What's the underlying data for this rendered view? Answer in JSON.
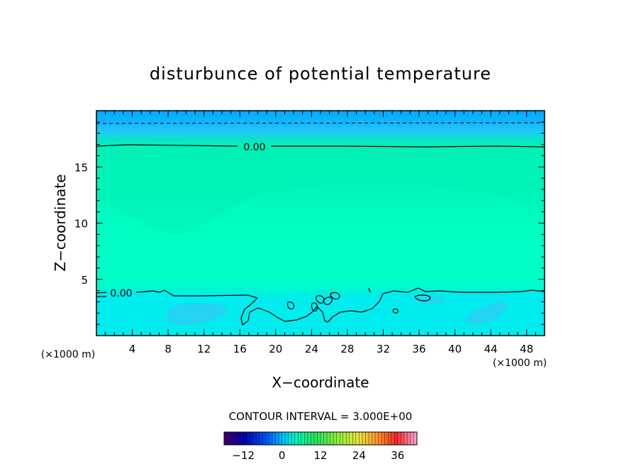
{
  "chart_data": {
    "type": "heatmap",
    "title": "disturbunce of potential temperature",
    "xlabel": "X−coordinate",
    "ylabel": "Z−coordinate",
    "x_unit_left": "(×1000 m)",
    "x_unit_right": "(×1000 m)",
    "xlim": [
      0,
      50
    ],
    "ylim": [
      0,
      20
    ],
    "x_ticks": [
      4,
      8,
      12,
      16,
      20,
      24,
      28,
      32,
      36,
      40,
      44,
      48
    ],
    "x_tick_labels": [
      "4",
      "8",
      "12",
      "16",
      "20",
      "24",
      "28",
      "32",
      "36",
      "40",
      "44",
      "48"
    ],
    "y_ticks": [
      5,
      10,
      15
    ],
    "y_tick_labels": [
      "5",
      "10",
      "15"
    ],
    "contour_labels": [
      "0.00",
      "0.00"
    ],
    "contour_interval_text": "CONTOUR INTERVAL = 3.000E+00",
    "colorbar": {
      "range": [
        -18,
        42
      ],
      "tick_values": [
        -12,
        0,
        12,
        24,
        36
      ],
      "tick_labels": [
        "−12",
        "0",
        "12",
        "24",
        "36"
      ]
    },
    "field_description_levels": {
      "top_band_value": -3,
      "upper_layer_value": -1.5,
      "middle_layer_value": 1.5,
      "lower_layer_value": -1.5
    },
    "colors": {
      "top_band": "#00aaff",
      "upper_band": "#22bbff",
      "upper_green": "#00f0b8",
      "middle": "#00ffc0",
      "lower": "#00eeee",
      "lower_patches": "#33ccf0"
    },
    "grid": false
  }
}
